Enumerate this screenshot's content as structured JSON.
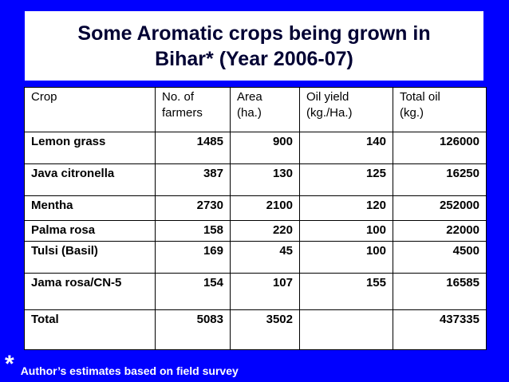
{
  "title": {
    "line1": "Some Aromatic crops being grown in",
    "line2": "Bihar* (Year 2006-07)"
  },
  "table": {
    "headers": [
      [
        "Crop",
        ""
      ],
      [
        "No. of",
        "farmers"
      ],
      [
        "Area",
        "(ha.)"
      ],
      [
        "Oil yield",
        "(kg./Ha.)"
      ],
      [
        "Total oil",
        "(kg.)"
      ]
    ],
    "rows": [
      [
        "Lemon grass",
        "1485",
        "900",
        "140",
        "126000"
      ],
      [
        "Java citronella",
        "387",
        "130",
        "125",
        "16250"
      ],
      [
        "Mentha",
        "2730",
        "2100",
        "120",
        "252000"
      ],
      [
        "Palma rosa",
        "158",
        "220",
        "100",
        "22000"
      ],
      [
        "Tulsi (Basil)",
        "169",
        "45",
        "100",
        "4500"
      ],
      [
        "Jama rosa/CN-5",
        "154",
        "107",
        "155",
        "16585"
      ],
      [
        "Total",
        "5083",
        "3502",
        "",
        "437335"
      ]
    ]
  },
  "footnote": {
    "marker": "*",
    "text": "Author’s estimates based on field survey"
  }
}
